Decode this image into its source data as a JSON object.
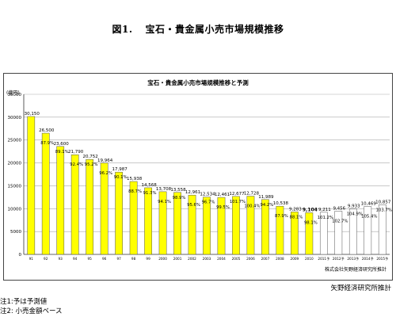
{
  "figure_title_num": "図1.",
  "figure_title": "宝石・貴金属小売市場規模推移",
  "source_inside": "株式会社矢野経済研究所推計",
  "source_outside": "矢野経済研究所推計",
  "notes": [
    "注1:予は予測値",
    "注2: 小売金額ベース"
  ],
  "colors": {
    "actual": "#ffff00",
    "forecast": "#ffffff",
    "outline": "#555555"
  },
  "chart_data": {
    "type": "bar",
    "title": "宝石・貴金属小売市場規模推移と予測",
    "ylabel": "(億円)",
    "ylim": [
      0,
      35000
    ],
    "yticks": [
      "0",
      "5000",
      "10000",
      "15000",
      "20000",
      "25000",
      "30000",
      "35000"
    ],
    "grid": true,
    "categories": [
      "91",
      "92",
      "93",
      "94",
      "95",
      "96",
      "97",
      "98",
      "99",
      "2000",
      "2001",
      "2002",
      "2003",
      "2004",
      "2005",
      "2006",
      "2007",
      "2008",
      "2009",
      "2010",
      "2011予",
      "2012予",
      "2013予",
      "2014予",
      "2015予"
    ],
    "values": [
      30150,
      26500,
      23600,
      21790,
      20752,
      19964,
      17987,
      15938,
      14568,
      13708,
      13558,
      12961,
      12534,
      12461,
      12677,
      12728,
      11989,
      10538,
      9283,
      9104,
      9211,
      9456,
      9933,
      10469,
      10857
    ],
    "value_labels": [
      "30,150",
      "26,500",
      "23,600",
      "21,790",
      "20,752",
      "19,964",
      "17,987",
      "15,938",
      "14,568",
      "13,708",
      "13,558",
      "12,961",
      "12,534",
      "12,461",
      "12,677",
      "12,728",
      "11,989",
      "10,538",
      "9,283",
      "9,104",
      "9,211",
      "9,456",
      "9,933",
      "10,469",
      "10,857"
    ],
    "pct_labels": [
      "",
      "87.9%",
      "89.1%",
      "92.4%",
      "95.2%",
      "96.2%",
      "90.1%",
      "88.7%",
      "91.3%",
      "94.1%",
      "98.9%",
      "95.6%",
      "96.7%",
      "99.5%",
      "101.7%",
      "100.4%",
      "94.2%",
      "87.9%",
      "88.1%",
      "98.1%",
      "101.2%",
      "102.7%",
      "104.9%",
      "105.4%",
      "103.7%"
    ],
    "forecast_from_index": 20
  }
}
